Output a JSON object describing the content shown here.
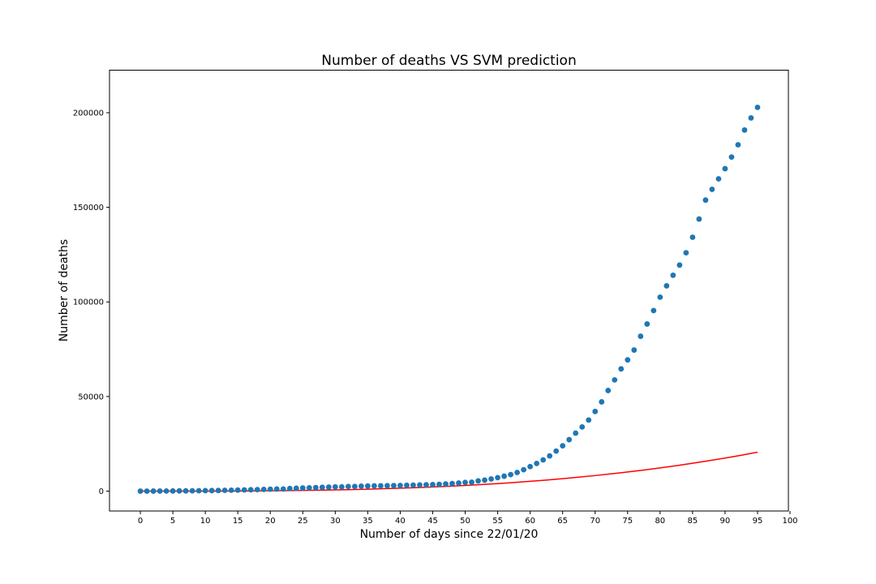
{
  "chart_data": {
    "type": "scatter",
    "title": "Number of deaths VS SVM prediction",
    "xlabel": "Number of days since 22/01/20",
    "ylabel": "Number of deaths",
    "xlim": [
      -4.75,
      99.75
    ],
    "ylim": [
      -10500,
      222500
    ],
    "xticks": [
      0,
      5,
      10,
      15,
      20,
      25,
      30,
      35,
      40,
      45,
      50,
      55,
      60,
      65,
      70,
      75,
      80,
      85,
      90,
      95,
      100
    ],
    "yticks": [
      0,
      50000,
      100000,
      150000,
      200000
    ],
    "grid": false,
    "series": [
      {
        "mode": "markers",
        "color": "#1f77b4",
        "x": [
          0,
          1,
          2,
          3,
          4,
          5,
          6,
          7,
          8,
          9,
          10,
          11,
          12,
          13,
          14,
          15,
          16,
          17,
          18,
          19,
          20,
          21,
          22,
          23,
          24,
          25,
          26,
          27,
          28,
          29,
          30,
          31,
          32,
          33,
          34,
          35,
          36,
          37,
          38,
          39,
          40,
          41,
          42,
          43,
          44,
          45,
          46,
          47,
          48,
          49,
          50,
          51,
          52,
          53,
          54,
          55,
          56,
          57,
          58,
          59,
          60,
          61,
          62,
          63,
          64,
          65,
          66,
          67,
          68,
          69,
          70,
          71,
          72,
          73,
          74,
          75,
          76,
          77,
          78,
          79,
          80,
          81,
          82,
          83,
          84,
          85,
          86,
          87,
          88,
          89,
          90,
          91,
          92,
          93,
          94,
          95
        ],
        "y": [
          17,
          18,
          26,
          42,
          56,
          82,
          131,
          133,
          171,
          213,
          259,
          304,
          362,
          426,
          492,
          564,
          634,
          719,
          806,
          906,
          1013,
          1113,
          1118,
          1371,
          1523,
          1666,
          1770,
          1868,
          2008,
          2123,
          2247,
          2251,
          2458,
          2469,
          2629,
          2708,
          2770,
          2814,
          2872,
          2941,
          2996,
          3085,
          3160,
          3254,
          3348,
          3460,
          3558,
          3802,
          3988,
          4262,
          4615,
          4720,
          5404,
          5819,
          6440,
          7126,
          7905,
          8733,
          9867,
          11299,
          12973,
          14623,
          16497,
          18615,
          21181,
          23970,
          27198,
          30652,
          33925,
          37582,
          42107,
          47180,
          53190,
          58787,
          64606,
          69374,
          74565,
          81865,
          88338,
          95455,
          102525,
          108503,
          114090,
          119482,
          125984,
          134177,
          143800,
          153822,
          159510,
          165044,
          170436,
          176583,
          183066,
          190858,
          197245,
          202846
        ]
      },
      {
        "mode": "line",
        "color": "#ff0000",
        "x": [
          0,
          2.5,
          5,
          7.5,
          10,
          12.5,
          15,
          17.5,
          20,
          22.5,
          25,
          27.5,
          30,
          32.5,
          35,
          37.5,
          40,
          42.5,
          45,
          47.5,
          50,
          52.5,
          55,
          57.5,
          60,
          62.5,
          65,
          67.5,
          70,
          72.5,
          75,
          77.5,
          80,
          82.5,
          85,
          87.5,
          90,
          92.5,
          95
        ],
        "y": [
          0,
          0,
          2,
          9,
          24,
          48,
          81,
          129,
          192,
          274,
          375,
          500,
          648,
          824,
          1029,
          1266,
          1536,
          1843,
          2187,
          2572,
          3000,
          3473,
          3993,
          4563,
          5184,
          5859,
          6591,
          7381,
          8232,
          9146,
          10125,
          11171,
          12288,
          13477,
          14739,
          16078,
          17496,
          18995,
          20577
        ]
      }
    ]
  }
}
